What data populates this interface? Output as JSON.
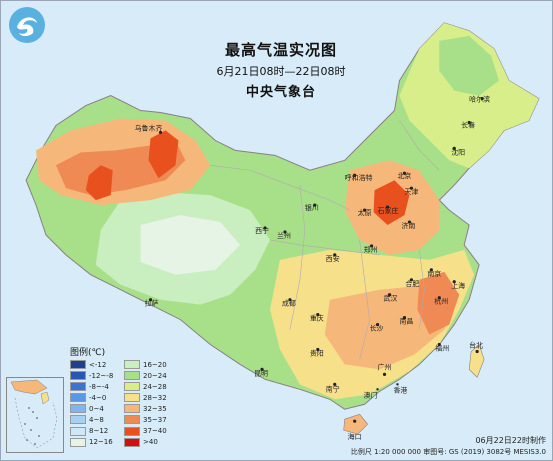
{
  "title": "最高气温实况图",
  "time_range": "6月21日08时—22日08时",
  "agency": "中央气象台",
  "legend": {
    "title": "图例(℃)",
    "items": [
      {
        "label": "<-12",
        "color": "#1f3f8f"
      },
      {
        "label": "16~20",
        "color": "#c9eec0"
      },
      {
        "label": "-12~-8",
        "color": "#2b57b3"
      },
      {
        "label": "20~24",
        "color": "#a8e089"
      },
      {
        "label": "-8~-4",
        "color": "#3a74d0"
      },
      {
        "label": "24~28",
        "color": "#d8ee8a"
      },
      {
        "label": "-4~0",
        "color": "#5b97e4"
      },
      {
        "label": "28~32",
        "color": "#f7e08a"
      },
      {
        "label": "0~4",
        "color": "#7fb6ee"
      },
      {
        "label": "32~35",
        "color": "#f5b87a"
      },
      {
        "label": "4~8",
        "color": "#a6d1f3"
      },
      {
        "label": "35~37",
        "color": "#ef8a55"
      },
      {
        "label": "8~12",
        "color": "#cfe8f8"
      },
      {
        "label": "37~40",
        "color": "#e8501e"
      },
      {
        "label": "12~16",
        "color": "#e6f4e6"
      },
      {
        "label": ">40",
        "color": "#d01010"
      }
    ]
  },
  "cities": [
    {
      "name": "乌鲁木齐"
    },
    {
      "name": "哈尔滨"
    },
    {
      "name": "长春"
    },
    {
      "name": "沈阳"
    },
    {
      "name": "呼和浩特"
    },
    {
      "name": "北京"
    },
    {
      "name": "天津"
    },
    {
      "name": "银川"
    },
    {
      "name": "太原"
    },
    {
      "name": "石家庄"
    },
    {
      "name": "济南"
    },
    {
      "name": "兰州"
    },
    {
      "name": "西宁"
    },
    {
      "name": "西安"
    },
    {
      "name": "郑州"
    },
    {
      "name": "拉萨"
    },
    {
      "name": "成都"
    },
    {
      "name": "重庆"
    },
    {
      "name": "武汉"
    },
    {
      "name": "合肥"
    },
    {
      "name": "南京"
    },
    {
      "name": "上海"
    },
    {
      "name": "杭州"
    },
    {
      "name": "长沙"
    },
    {
      "name": "南昌"
    },
    {
      "name": "贵阳"
    },
    {
      "name": "福州"
    },
    {
      "name": "台北"
    },
    {
      "name": "昆明"
    },
    {
      "name": "广州"
    },
    {
      "name": "南宁"
    },
    {
      "name": "海口"
    },
    {
      "name": "澳门"
    },
    {
      "name": "香港"
    }
  ],
  "footer": {
    "issued": "06月22日22时制作",
    "scale": "比例尺 1:20 000 000  审图号: GS (2019) 3082号 MESIS3.0"
  },
  "colors": {
    "sea": "#d7ecf8",
    "border": "#8a7d86"
  }
}
